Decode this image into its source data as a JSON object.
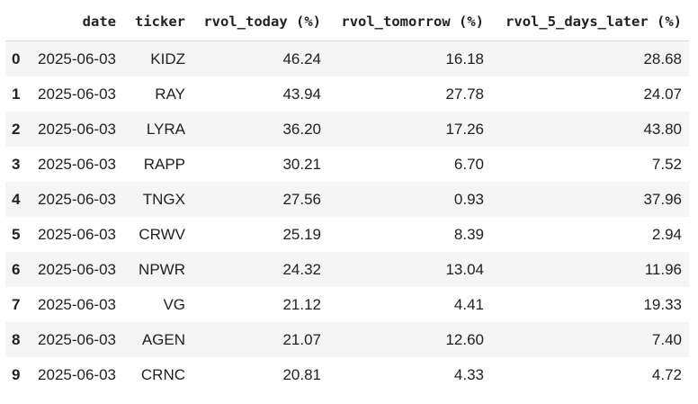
{
  "table": {
    "columns": [
      "date",
      "ticker",
      "rvol_today (%)",
      "rvol_tomorrow (%)",
      "rvol_5_days_later (%)"
    ],
    "rows": [
      {
        "index": 0,
        "cells": [
          "2025-06-03",
          "KIDZ",
          "46.24",
          "16.18",
          "28.68"
        ]
      },
      {
        "index": 1,
        "cells": [
          "2025-06-03",
          "RAY",
          "43.94",
          "27.78",
          "24.07"
        ]
      },
      {
        "index": 2,
        "cells": [
          "2025-06-03",
          "LYRA",
          "36.20",
          "17.26",
          "43.80"
        ]
      },
      {
        "index": 3,
        "cells": [
          "2025-06-03",
          "RAPP",
          "30.21",
          "6.70",
          "7.52"
        ]
      },
      {
        "index": 4,
        "cells": [
          "2025-06-03",
          "TNGX",
          "27.56",
          "0.93",
          "37.96"
        ]
      },
      {
        "index": 5,
        "cells": [
          "2025-06-03",
          "CRWV",
          "25.19",
          "8.39",
          "2.94"
        ]
      },
      {
        "index": 6,
        "cells": [
          "2025-06-03",
          "NPWR",
          "24.32",
          "13.04",
          "11.96"
        ]
      },
      {
        "index": 7,
        "cells": [
          "2025-06-03",
          "VG",
          "21.12",
          "4.41",
          "19.33"
        ]
      },
      {
        "index": 8,
        "cells": [
          "2025-06-03",
          "AGEN",
          "21.07",
          "12.60",
          "7.40"
        ]
      },
      {
        "index": 9,
        "cells": [
          "2025-06-03",
          "CRNC",
          "20.81",
          "4.33",
          "4.72"
        ]
      }
    ]
  }
}
